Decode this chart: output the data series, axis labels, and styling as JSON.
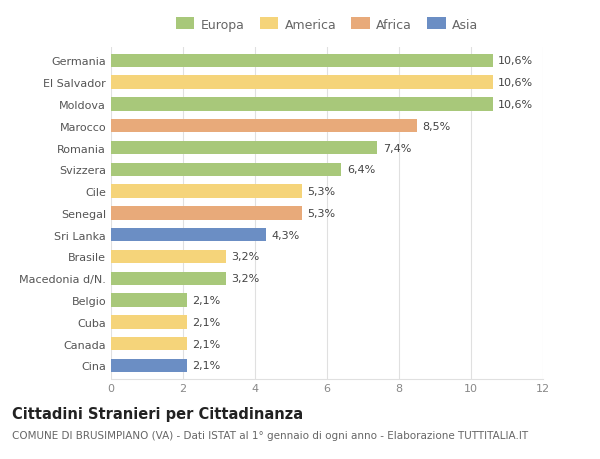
{
  "categories": [
    "Germania",
    "El Salvador",
    "Moldova",
    "Marocco",
    "Romania",
    "Svizzera",
    "Cile",
    "Senegal",
    "Sri Lanka",
    "Brasile",
    "Macedonia d/N.",
    "Belgio",
    "Cuba",
    "Canada",
    "Cina"
  ],
  "values": [
    10.6,
    10.6,
    10.6,
    8.5,
    7.4,
    6.4,
    5.3,
    5.3,
    4.3,
    3.2,
    3.2,
    2.1,
    2.1,
    2.1,
    2.1
  ],
  "labels": [
    "10,6%",
    "10,6%",
    "10,6%",
    "8,5%",
    "7,4%",
    "6,4%",
    "5,3%",
    "5,3%",
    "4,3%",
    "3,2%",
    "3,2%",
    "2,1%",
    "2,1%",
    "2,1%",
    "2,1%"
  ],
  "colors": [
    "#a8c87a",
    "#f5d47a",
    "#a8c87a",
    "#e8aa7a",
    "#a8c87a",
    "#a8c87a",
    "#f5d47a",
    "#e8aa7a",
    "#6b8ec4",
    "#f5d47a",
    "#a8c87a",
    "#a8c87a",
    "#f5d47a",
    "#f5d47a",
    "#6b8ec4"
  ],
  "legend_labels": [
    "Europa",
    "America",
    "Africa",
    "Asia"
  ],
  "legend_colors": [
    "#a8c87a",
    "#f5d47a",
    "#e8aa7a",
    "#6b8ec4"
  ],
  "title": "Cittadini Stranieri per Cittadinanza",
  "subtitle": "COMUNE DI BRUSIMPIANO (VA) - Dati ISTAT al 1° gennaio di ogni anno - Elaborazione TUTTITALIA.IT",
  "xlim": [
    0,
    12
  ],
  "xticks": [
    0,
    2,
    4,
    6,
    8,
    10,
    12
  ],
  "bg_color": "#ffffff",
  "grid_color": "#e0e0e0",
  "bar_height": 0.62,
  "title_fontsize": 10.5,
  "subtitle_fontsize": 7.5,
  "label_fontsize": 8,
  "tick_fontsize": 8,
  "legend_fontsize": 9
}
